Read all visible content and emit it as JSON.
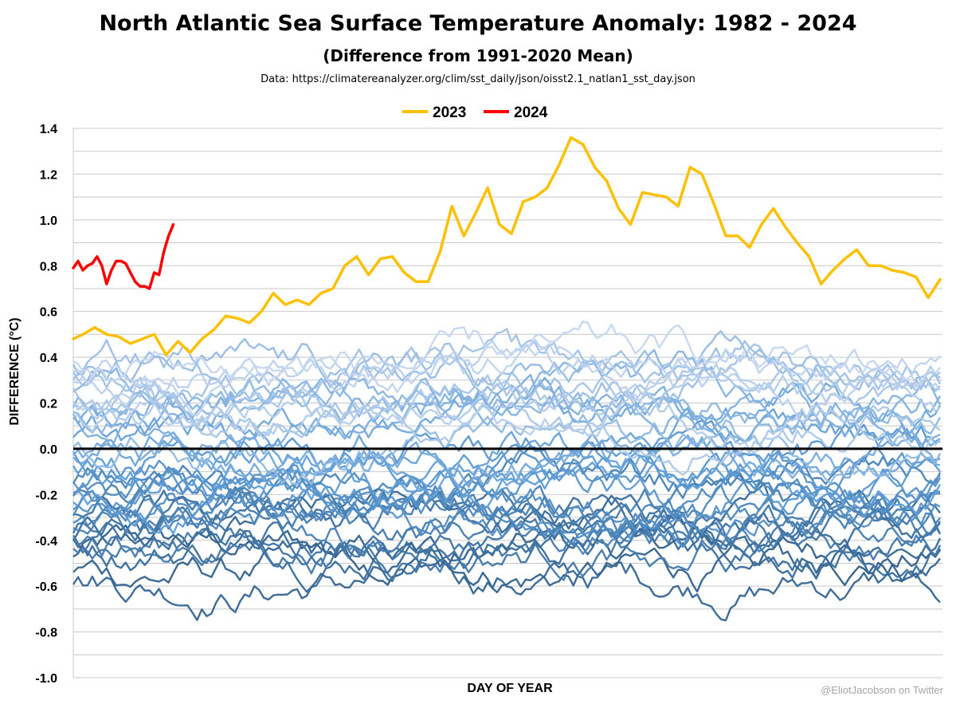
{
  "chart_data": {
    "type": "line",
    "title": "North Atlantic Sea Surface Temperature Anomaly: 1982 - 2024",
    "subtitle": "(Difference from 1991-2020 Mean)",
    "source": "Data: https://climatereanalyzer.org/clim/sst_daily/json/oisst2.1_natlan1_sst_day.json",
    "xlabel": "DAY OF YEAR",
    "ylabel": "DIFFERENCE (°C)",
    "credit": "@EliotJacobson on Twitter",
    "xlim": [
      1,
      366
    ],
    "ylim": [
      -1.0,
      1.4
    ],
    "yticks": [
      "1.4",
      "1.2",
      "1.0",
      "0.8",
      "0.6",
      "0.4",
      "0.2",
      "0.0",
      "-0.2",
      "-0.4",
      "-0.6",
      "-0.8",
      "-1.0"
    ],
    "grid": true,
    "legend": {
      "position": "top-center",
      "entries": [
        "2023",
        "2024"
      ]
    },
    "background_years": {
      "range": "1982-2022",
      "color_old": "#2f5f8a",
      "color_mid": "#5b9bd5",
      "color_recent": "#c5d6ee",
      "approx_anomaly_range": [
        -0.9,
        0.75
      ]
    },
    "series": [
      {
        "name": "2023",
        "color": "#ffc000",
        "x": [
          1,
          5,
          10,
          15,
          20,
          25,
          30,
          35,
          40,
          45,
          50,
          55,
          60,
          65,
          70,
          75,
          80,
          85,
          90,
          95,
          100,
          105,
          110,
          115,
          120,
          125,
          130,
          135,
          140,
          145,
          150,
          155,
          160,
          165,
          170,
          175,
          180,
          185,
          190,
          195,
          200,
          205,
          210,
          215,
          220,
          225,
          230,
          235,
          240,
          245,
          250,
          255,
          260,
          265,
          270,
          275,
          280,
          285,
          290,
          295,
          300,
          305,
          310,
          315,
          320,
          325,
          330,
          335,
          340,
          345,
          350,
          355,
          360,
          365
        ],
        "y": [
          0.48,
          0.5,
          0.53,
          0.5,
          0.49,
          0.46,
          0.48,
          0.5,
          0.41,
          0.47,
          0.42,
          0.48,
          0.52,
          0.58,
          0.57,
          0.55,
          0.6,
          0.68,
          0.63,
          0.65,
          0.63,
          0.68,
          0.7,
          0.8,
          0.84,
          0.76,
          0.83,
          0.84,
          0.77,
          0.73,
          0.73,
          0.86,
          1.06,
          0.93,
          1.03,
          1.14,
          0.98,
          0.94,
          1.08,
          1.1,
          1.14,
          1.24,
          1.36,
          1.33,
          1.23,
          1.17,
          1.05,
          0.98,
          1.12,
          1.11,
          1.1,
          1.06,
          1.23,
          1.2,
          1.07,
          0.93,
          0.93,
          0.88,
          0.98,
          1.05,
          0.97,
          0.9,
          0.84,
          0.72,
          0.78,
          0.83,
          0.87,
          0.8,
          0.8,
          0.78,
          0.77,
          0.75,
          0.66,
          0.74
        ]
      },
      {
        "name": "2024",
        "color": "#ff0000",
        "x": [
          1,
          3,
          5,
          7,
          9,
          11,
          13,
          15,
          17,
          19,
          21,
          23,
          25,
          27,
          29,
          31,
          33,
          35,
          37,
          39,
          41,
          43
        ],
        "y": [
          0.79,
          0.82,
          0.78,
          0.8,
          0.81,
          0.84,
          0.8,
          0.72,
          0.78,
          0.82,
          0.82,
          0.81,
          0.77,
          0.73,
          0.71,
          0.71,
          0.7,
          0.77,
          0.76,
          0.86,
          0.93,
          0.98
        ]
      }
    ]
  }
}
